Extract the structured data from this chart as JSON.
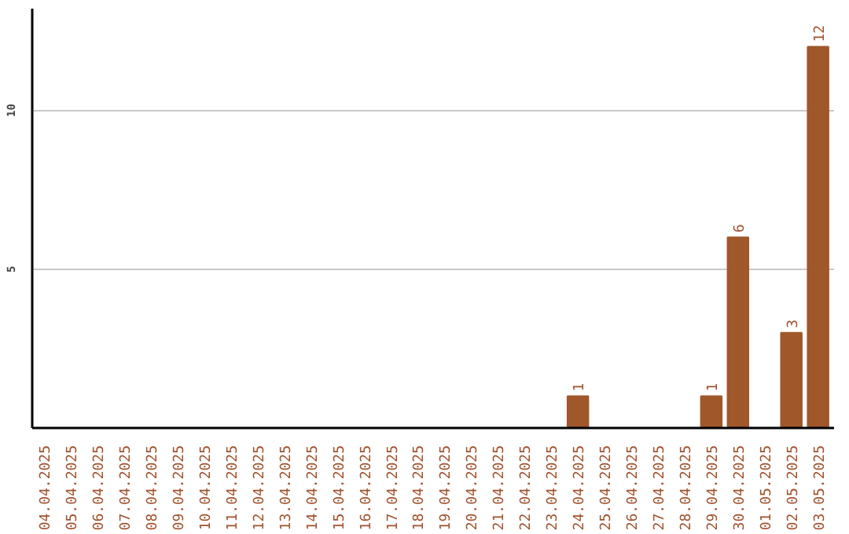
{
  "chart_data": {
    "type": "bar",
    "categories": [
      "04.04.2025",
      "05.04.2025",
      "06.04.2025",
      "07.04.2025",
      "08.04.2025",
      "09.04.2025",
      "10.04.2025",
      "11.04.2025",
      "12.04.2025",
      "13.04.2025",
      "14.04.2025",
      "15.04.2025",
      "16.04.2025",
      "17.04.2025",
      "18.04.2025",
      "19.04.2025",
      "20.04.2025",
      "21.04.2025",
      "22.04.2025",
      "23.04.2025",
      "24.04.2025",
      "25.04.2025",
      "26.04.2025",
      "27.04.2025",
      "28.04.2025",
      "29.04.2025",
      "30.04.2025",
      "01.05.2025",
      "02.05.2025",
      "03.05.2025"
    ],
    "values": [
      0,
      0,
      0,
      0,
      0,
      0,
      0,
      0,
      0,
      0,
      0,
      0,
      0,
      0,
      0,
      0,
      0,
      0,
      0,
      0,
      1,
      0,
      0,
      0,
      0,
      1,
      6,
      0,
      3,
      12
    ],
    "value_labels": [
      null,
      null,
      null,
      null,
      null,
      null,
      null,
      null,
      null,
      null,
      null,
      null,
      null,
      null,
      null,
      null,
      null,
      null,
      null,
      null,
      "1",
      null,
      null,
      null,
      null,
      "1",
      "6",
      null,
      "3",
      "12"
    ],
    "color": "#a0572a",
    "ylim": [
      0,
      13.2
    ],
    "yticks": [
      5,
      10
    ],
    "grid": "y"
  }
}
